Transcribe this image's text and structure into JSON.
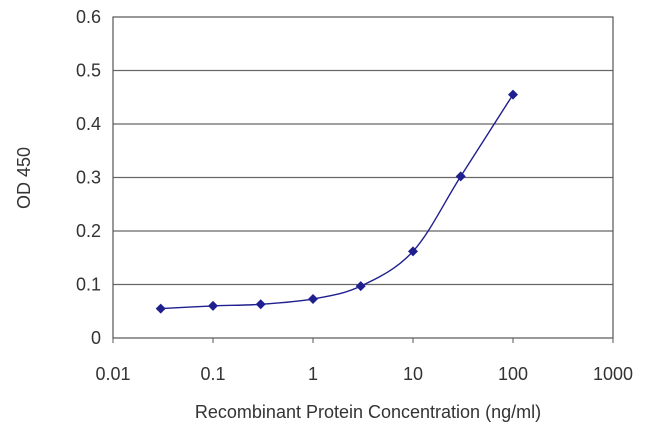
{
  "chart_data": {
    "type": "scatter",
    "xlabel": "Recombinant Protein Concentration (ng/ml)",
    "ylabel": "OD 450",
    "x_scale": "log",
    "xlim": [
      0.01,
      1000
    ],
    "ylim": [
      0,
      0.6
    ],
    "x_ticks": [
      "0.01",
      "0.1",
      "1",
      "10",
      "100",
      "1000"
    ],
    "y_ticks": [
      "0",
      "0.1",
      "0.2",
      "0.3",
      "0.4",
      "0.5",
      "0.6"
    ],
    "grid": "horizontal",
    "legend": "none",
    "series": [
      {
        "color": "#1f1f8f",
        "marker": "diamond",
        "x": [
          0.03,
          0.1,
          0.3,
          1,
          3,
          10,
          30,
          100
        ],
        "y": [
          0.055,
          0.06,
          0.063,
          0.073,
          0.097,
          0.162,
          0.302,
          0.455
        ]
      }
    ]
  }
}
